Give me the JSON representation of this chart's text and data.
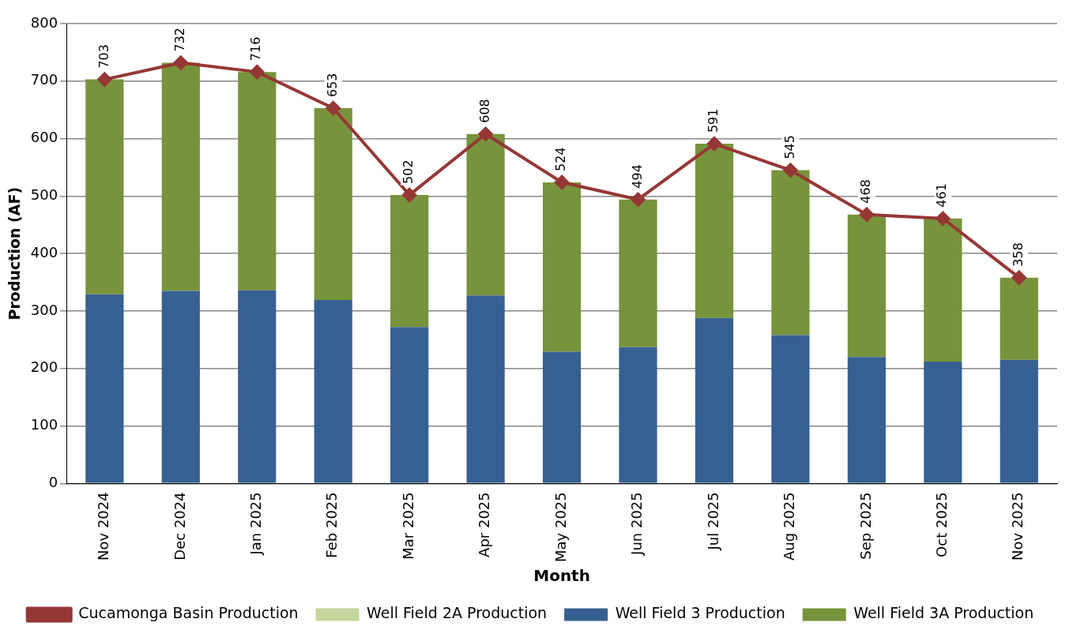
{
  "chart_data": {
    "type": "bar",
    "stacked": true,
    "xlabel": "Month",
    "ylabel": "Production (AF)",
    "categories": [
      "Nov 2024",
      "Dec 2024",
      "Jan 2025",
      "Feb 2025",
      "Mar 2025",
      "Apr 2025",
      "May 2025",
      "Jun 2025",
      "Jul 2025",
      "Aug 2025",
      "Sep 2025",
      "Oct 2025",
      "Nov 2025"
    ],
    "series": [
      {
        "name": "Well Field 2A Production",
        "color": "#c3d69b",
        "values": [
          0,
          0,
          0,
          0,
          0,
          0,
          0,
          0,
          0,
          0,
          0,
          0,
          0
        ]
      },
      {
        "name": "Well Field 3 Production",
        "color": "#376092",
        "values": [
          329,
          335,
          336,
          319,
          272,
          327,
          229,
          237,
          288,
          258,
          220,
          212,
          215
        ]
      },
      {
        "name": "Well Field 3A Production",
        "color": "#77933c",
        "values": [
          374,
          397,
          380,
          334,
          230,
          281,
          295,
          257,
          303,
          287,
          248,
          249,
          143
        ]
      },
      {
        "name": "Cucamonga Basin Production",
        "type": "line",
        "color": "#953735",
        "marker": "diamond",
        "values": [
          703,
          732,
          716,
          653,
          502,
          608,
          524,
          494,
          591,
          545,
          468,
          461,
          358
        ],
        "value_labels": [
          "703",
          "732",
          "716",
          "653",
          "502",
          "608",
          "524",
          "494",
          "591",
          "545",
          "468",
          "461",
          "358"
        ]
      }
    ],
    "ylim": [
      0,
      800
    ],
    "yticks": [
      0,
      100,
      200,
      300,
      400,
      500,
      600,
      700,
      800
    ],
    "grid": "y",
    "legend": "bottom"
  }
}
